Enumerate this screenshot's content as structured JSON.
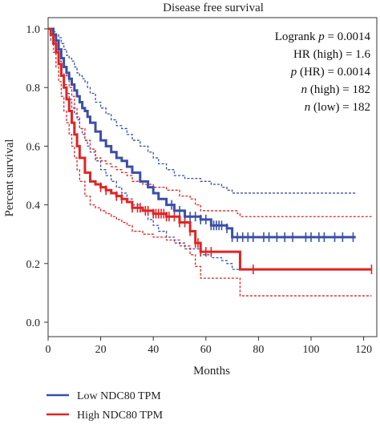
{
  "chart_data": {
    "type": "line",
    "title": "Disease free survival",
    "xlabel": "Months",
    "ylabel": "Percent survival",
    "xlim": [
      0,
      125
    ],
    "ylim": [
      0,
      1.0
    ],
    "xticks": [
      0,
      20,
      40,
      60,
      80,
      100,
      120
    ],
    "yticks": [
      0.0,
      0.2,
      0.4,
      0.6,
      0.8,
      1.0
    ],
    "yticklabels": [
      "0.0",
      "0.2",
      "0.4",
      "0.6",
      "0.8",
      "1.0"
    ],
    "grid": false,
    "legend_position": "bottom-left",
    "stats": [
      {
        "prefix": "Logrank ",
        "italic": "p",
        "suffix": " = 0.0014"
      },
      {
        "prefix": "HR (high) = 1.6",
        "italic": "",
        "suffix": ""
      },
      {
        "prefix": "",
        "italic": "p",
        "suffix": " (HR) = 0.0014"
      },
      {
        "prefix": "",
        "italic": "n",
        "suffix": " (high) = 182"
      },
      {
        "prefix": "",
        "italic": "n",
        "suffix": " (low) = 182"
      }
    ],
    "series": [
      {
        "name": "Low NDC80 TPM",
        "color": "#3a4fa8",
        "x": [
          0,
          2,
          3,
          4,
          5,
          6,
          7,
          8,
          9,
          10,
          11,
          12,
          13,
          14,
          15,
          16,
          18,
          20,
          22,
          24,
          26,
          28,
          30,
          32,
          35,
          38,
          40,
          42,
          45,
          48,
          52,
          58,
          62,
          66,
          68,
          70,
          80,
          100,
          117
        ],
        "y": [
          1.0,
          0.98,
          0.96,
          0.93,
          0.9,
          0.87,
          0.85,
          0.83,
          0.81,
          0.79,
          0.77,
          0.75,
          0.73,
          0.72,
          0.7,
          0.68,
          0.65,
          0.62,
          0.6,
          0.58,
          0.56,
          0.55,
          0.53,
          0.51,
          0.48,
          0.46,
          0.44,
          0.42,
          0.4,
          0.38,
          0.36,
          0.35,
          0.33,
          0.33,
          0.32,
          0.29,
          0.29,
          0.29,
          0.29
        ],
        "ci_upper": [
          1.0,
          0.99,
          0.98,
          0.97,
          0.95,
          0.93,
          0.91,
          0.9,
          0.89,
          0.87,
          0.85,
          0.84,
          0.83,
          0.82,
          0.8,
          0.78,
          0.75,
          0.73,
          0.71,
          0.69,
          0.67,
          0.66,
          0.64,
          0.62,
          0.6,
          0.58,
          0.56,
          0.54,
          0.52,
          0.5,
          0.49,
          0.48,
          0.47,
          0.46,
          0.45,
          0.44,
          0.44,
          0.44,
          0.44
        ],
        "ci_lower": [
          1.0,
          0.96,
          0.93,
          0.89,
          0.85,
          0.81,
          0.78,
          0.76,
          0.73,
          0.71,
          0.69,
          0.66,
          0.64,
          0.62,
          0.6,
          0.58,
          0.55,
          0.52,
          0.5,
          0.48,
          0.46,
          0.44,
          0.42,
          0.4,
          0.38,
          0.35,
          0.33,
          0.31,
          0.29,
          0.27,
          0.25,
          0.23,
          0.22,
          0.21,
          0.2,
          0.18,
          0.18,
          0.18,
          0.18
        ],
        "censor_x": [
          47,
          50,
          52,
          54,
          56,
          58,
          60,
          62,
          63,
          64,
          65,
          66,
          68,
          70,
          72,
          74,
          76,
          78,
          82,
          84,
          87,
          90,
          93,
          98,
          100,
          103,
          105,
          109,
          112,
          116
        ]
      },
      {
        "name": "High NDC80 TPM",
        "color": "#e02424",
        "x": [
          0,
          1,
          2,
          3,
          4,
          5,
          6,
          7,
          8,
          9,
          10,
          11,
          12,
          14,
          16,
          18,
          20,
          22,
          24,
          26,
          28,
          30,
          32,
          36,
          40,
          45,
          50,
          54,
          56,
          58,
          72,
          73,
          100,
          123
        ],
        "y": [
          1.0,
          0.98,
          0.95,
          0.92,
          0.88,
          0.84,
          0.8,
          0.76,
          0.72,
          0.68,
          0.64,
          0.6,
          0.56,
          0.51,
          0.48,
          0.47,
          0.46,
          0.45,
          0.44,
          0.43,
          0.42,
          0.41,
          0.39,
          0.38,
          0.37,
          0.36,
          0.34,
          0.31,
          0.27,
          0.24,
          0.24,
          0.18,
          0.18,
          0.18
        ],
        "ci_upper": [
          1.0,
          0.99,
          0.98,
          0.96,
          0.93,
          0.9,
          0.87,
          0.84,
          0.8,
          0.77,
          0.73,
          0.7,
          0.66,
          0.62,
          0.59,
          0.56,
          0.55,
          0.54,
          0.53,
          0.52,
          0.51,
          0.5,
          0.48,
          0.47,
          0.46,
          0.45,
          0.43,
          0.42,
          0.4,
          0.38,
          0.37,
          0.36,
          0.36,
          0.36
        ],
        "ci_lower": [
          1.0,
          0.96,
          0.92,
          0.87,
          0.82,
          0.77,
          0.72,
          0.68,
          0.64,
          0.6,
          0.56,
          0.52,
          0.48,
          0.43,
          0.4,
          0.39,
          0.38,
          0.37,
          0.36,
          0.35,
          0.34,
          0.33,
          0.31,
          0.3,
          0.29,
          0.28,
          0.26,
          0.23,
          0.19,
          0.15,
          0.15,
          0.09,
          0.09,
          0.09
        ],
        "censor_x": [
          20,
          22,
          26,
          28,
          32,
          34,
          35,
          37,
          38,
          40,
          41,
          42,
          43,
          44,
          45,
          46,
          48,
          50,
          52,
          54,
          56,
          57,
          58,
          60,
          62,
          78,
          123
        ]
      }
    ]
  }
}
